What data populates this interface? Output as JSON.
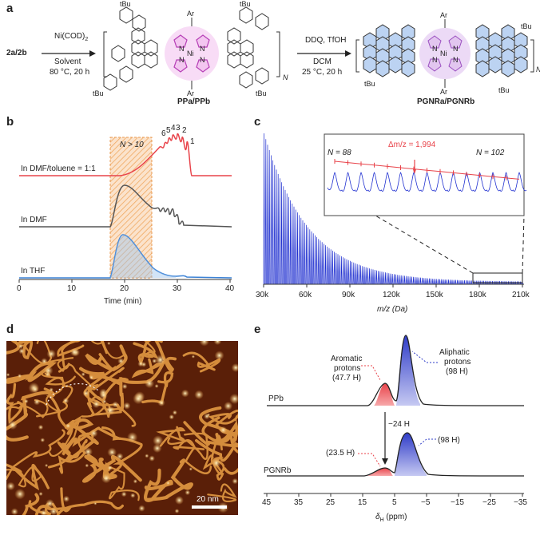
{
  "panels": {
    "a": "a",
    "b": "b",
    "c": "c",
    "d": "d",
    "e": "e"
  },
  "scheme": {
    "reactant": "2a/2b",
    "step1_reagent": "Ni(COD)",
    "step1_reagent_sub": "2",
    "step1_solvent": "Solvent",
    "step1_conditions": "80 °C, 20 h",
    "polymer_label": "PPa/PPb",
    "step2_reagent": "DDQ, TfOH",
    "step2_solvent": "DCM",
    "step2_conditions": "25 °C, 20 h",
    "product_label": "PGNRa/PGNRb",
    "repeat_n": "N",
    "substituent_ar": "Ar",
    "metal": "Ni",
    "atom_n": "N",
    "tbu": "tBu"
  },
  "panel_b": {
    "region_label": "N > 10",
    "peak_labels": [
      "6",
      "5",
      "4",
      "3",
      "2",
      "1"
    ],
    "traces": [
      {
        "label": "In DMF/toluene = 1:1",
        "color": "#e8434a"
      },
      {
        "label": "In DMF",
        "color": "#555555"
      },
      {
        "label": "In THF",
        "color": "#3b82d6"
      }
    ],
    "x_ticks": [
      "0",
      "10",
      "20",
      "30",
      "40"
    ],
    "xlabel": "Time (min)"
  },
  "panel_c": {
    "inset_left": "N = 88",
    "inset_right": "N = 102",
    "inset_delta": "Δm/z = 1,994",
    "x_ticks": [
      "30k",
      "60k",
      "90k",
      "120k",
      "150k",
      "180k",
      "210k"
    ],
    "xlabel": "m/z (Da)",
    "color": "#1f2fd0"
  },
  "panel_d": {
    "scale_bar": "20 nm"
  },
  "panel_e": {
    "aromatic_label_1": "Aromatic",
    "aromatic_label_2": "protons",
    "aromatic_value_top": "(47.7 H)",
    "aliphatic_label_1": "Aliphatic",
    "aliphatic_label_2": "protons",
    "aliphatic_value_top": "(98 H)",
    "trace_top": "PPb",
    "trace_bottom": "PGNRb",
    "difference": "−24 H",
    "aromatic_value_bottom": "(23.5 H)",
    "aliphatic_value_bottom": "(98 H)",
    "x_ticks": [
      "45",
      "35",
      "25",
      "15",
      "5",
      "−5",
      "−15",
      "−25",
      "−35"
    ],
    "xlabel": "δ",
    "xlabel_sub": "H",
    "xlabel_unit": " (ppm)"
  }
}
